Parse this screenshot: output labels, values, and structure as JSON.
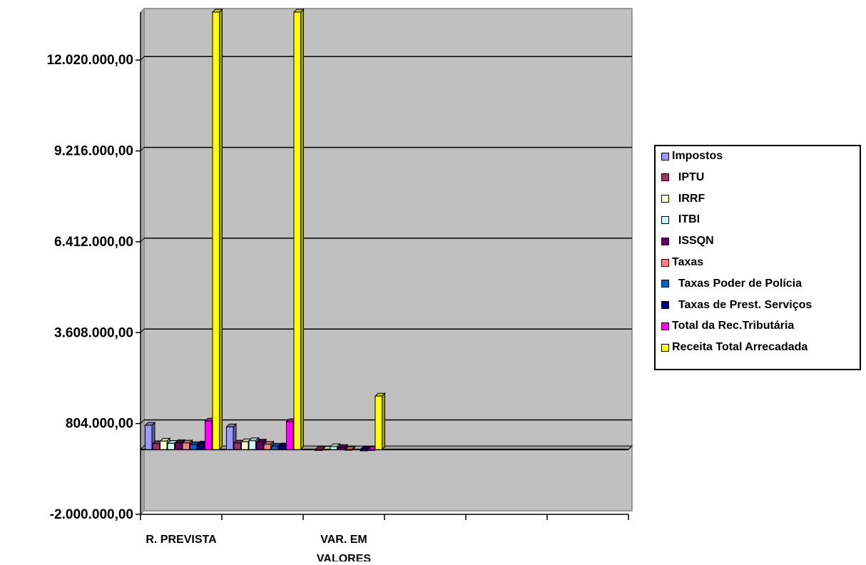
{
  "chart_data": {
    "type": "bar",
    "categories": [
      "R. PREVISTA",
      "",
      "VAR. EM VALORES",
      "",
      "",
      ""
    ],
    "ylim": [
      -2000000,
      13500000
    ],
    "y_ticks": [
      "12.020.000,00",
      "9.216.000,00",
      "6.412.000,00",
      "3.608.000,00",
      "804.000,00",
      "-2.000.000,00"
    ],
    "y_tick_values": [
      12020000,
      9216000,
      6412000,
      3608000,
      804000,
      -2000000
    ],
    "grid": true,
    "legend_placement": "right",
    "plot_background": "#c0c0c0",
    "series": [
      {
        "name": "Impostos",
        "color": "#9999ff",
        "values": [
          750000,
          700000,
          0,
          0,
          0,
          0
        ]
      },
      {
        "name": "IPTU",
        "color": "#993366",
        "values": [
          180000,
          200000,
          -30000,
          0,
          0,
          0
        ]
      },
      {
        "name": "IRRF",
        "color": "#ffffcc",
        "values": [
          260000,
          240000,
          10000,
          0,
          0,
          0
        ]
      },
      {
        "name": "ITBI",
        "color": "#ccffff",
        "values": [
          190000,
          270000,
          90000,
          0,
          0,
          0
        ]
      },
      {
        "name": "ISSQN",
        "color": "#660066",
        "values": [
          210000,
          230000,
          60000,
          0,
          0,
          0
        ]
      },
      {
        "name": "Taxas",
        "color": "#ff8080",
        "values": [
          200000,
          160000,
          -20000,
          0,
          0,
          0
        ]
      },
      {
        "name": "Taxas Poder de Polícia",
        "color": "#0066cc",
        "values": [
          150000,
          100000,
          0,
          0,
          0,
          0
        ]
      },
      {
        "name": "Taxas de Prest. Serviços",
        "color": "#000080",
        "values": [
          170000,
          110000,
          -40000,
          0,
          0,
          0
        ]
      },
      {
        "name": "Total da Rec.Tributária",
        "color": "#ff00ff",
        "values": [
          880000,
          860000,
          -30000,
          0,
          0,
          0
        ]
      },
      {
        "name": "Receita Total Arrecadada",
        "color": "#ffff00",
        "values": [
          13500000,
          13500000,
          1650000,
          0,
          0,
          0
        ]
      }
    ],
    "category_labels": [
      {
        "lines": [
          "R. PREVISTA"
        ],
        "at_tick": 0.5
      },
      {
        "lines": [
          "VAR. EM",
          "VALORES"
        ],
        "at_tick": 2.5
      }
    ]
  }
}
